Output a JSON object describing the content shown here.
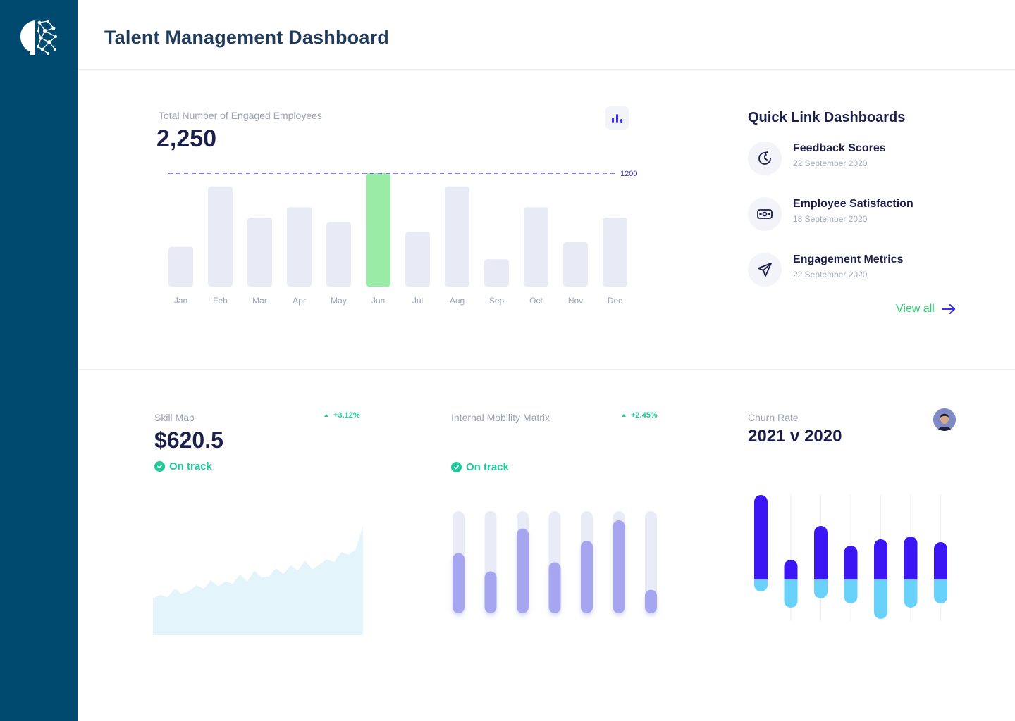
{
  "app": {
    "title": "Talent Management Dashboard"
  },
  "engaged": {
    "label": "Total Number of Engaged Employees",
    "value": "2,250",
    "target_label": "1200"
  },
  "chart_data": [
    {
      "type": "bar",
      "categories": [
        "Jan",
        "Feb",
        "Mar",
        "Apr",
        "May",
        "Jun",
        "Jul",
        "Aug",
        "Sep",
        "Oct",
        "Nov",
        "Dec"
      ],
      "values": [
        420,
        1060,
        730,
        840,
        680,
        1200,
        580,
        1060,
        290,
        840,
        470,
        730
      ],
      "highlight": "Jun",
      "target": 1200,
      "ylim": [
        0,
        1200
      ],
      "colors": {
        "bar": "#e8ebf5",
        "highlight": "#9aeba6",
        "target_line": "#3a2ff0"
      }
    },
    {
      "type": "area",
      "title": "Skill Map",
      "x": [
        0,
        1,
        2,
        3,
        4,
        5,
        6,
        7,
        8,
        9,
        10,
        11,
        12,
        13,
        14,
        15,
        16,
        17,
        18,
        19,
        20,
        21,
        22,
        23,
        24,
        25,
        26,
        27,
        28,
        29
      ],
      "values": [
        30,
        33,
        31,
        38,
        34,
        36,
        41,
        38,
        45,
        40,
        44,
        42,
        50,
        44,
        53,
        47,
        48,
        55,
        50,
        57,
        53,
        61,
        54,
        58,
        62,
        60,
        68,
        66,
        70,
        90
      ],
      "colors": {
        "fill": "#e3f4fa"
      }
    },
    {
      "type": "bar",
      "title": "Internal Mobility Matrix",
      "categories": [
        "1",
        "2",
        "3",
        "4",
        "5",
        "6",
        "7"
      ],
      "values": [
        0.59,
        0.41,
        0.83,
        0.5,
        0.71,
        0.91,
        0.23
      ],
      "ylim": [
        0,
        1
      ],
      "colors": {
        "track": "#e9ecf7",
        "bar": "#a5a6ef"
      }
    },
    {
      "type": "bar",
      "title": "Churn Rate",
      "categories": [
        "1",
        "2",
        "3",
        "4",
        "5",
        "6",
        "7"
      ],
      "series": [
        {
          "values": [
            120,
            28,
            76,
            48,
            57,
            61,
            53
          ]
        },
        {
          "values": [
            -17,
            -40,
            -27,
            -34,
            -56,
            -40,
            -34
          ]
        }
      ],
      "colors": {
        "positive": "#3d16f5",
        "negative": "#68d2fb"
      }
    }
  ],
  "quick_links": {
    "title": "Quick Link Dashboards",
    "items": [
      {
        "name": "Feedback Scores",
        "date": "22 September 2020",
        "icon": "clock-icon"
      },
      {
        "name": "Employee Satisfaction",
        "date": "18 September 2020",
        "icon": "cash-icon"
      },
      {
        "name": "Engagement Metrics",
        "date": "22 September 2020",
        "icon": "paper-plane-icon"
      }
    ],
    "view_all": "View all"
  },
  "skill_map": {
    "label": "Skill Map",
    "value": "$620.5",
    "delta": "+3.12%",
    "status": "On track"
  },
  "mobility": {
    "label": "Internal Mobility Matrix",
    "delta": "+2.45%",
    "status": "On track"
  },
  "churn": {
    "label": "Churn Rate",
    "value": "2021 v 2020"
  },
  "colors": {
    "sidebar": "#004a6f",
    "accent": "#3a2ff0",
    "success": "#1fc99a"
  }
}
